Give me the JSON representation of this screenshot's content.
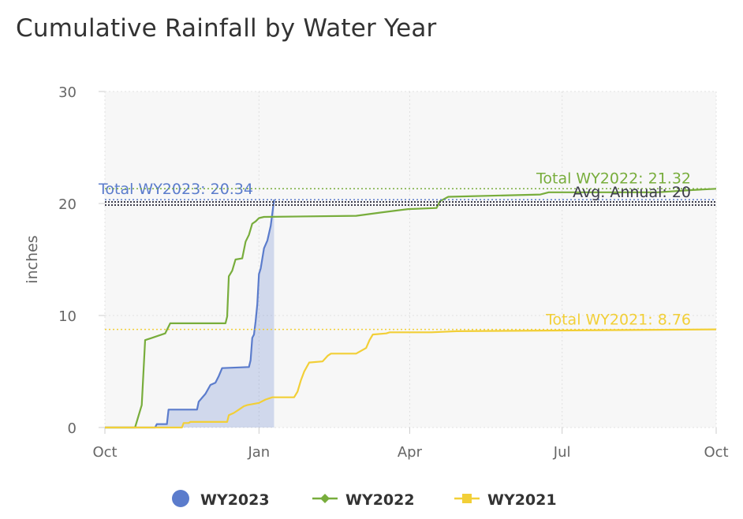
{
  "title": "Cumulative Rainfall by Water Year",
  "chart_data": {
    "type": "line",
    "title": "Cumulative Rainfall by Water Year",
    "ylabel": "inches",
    "xlabel": "",
    "ylim": [
      0,
      30
    ],
    "yticks": [
      0,
      10,
      20,
      30
    ],
    "xlim": [
      0,
      365
    ],
    "xticks": [
      {
        "day": 0,
        "label": "Oct"
      },
      {
        "day": 92,
        "label": "Jan"
      },
      {
        "day": 182,
        "label": "Apr"
      },
      {
        "day": 273,
        "label": "Jul"
      },
      {
        "day": 365,
        "label": "Oct"
      }
    ],
    "grid": true,
    "legend_position": "bottom",
    "colors": {
      "WY2023": "#5b7ccc",
      "WY2022": "#78ad3c",
      "WY2021": "#f2cf37",
      "avg": "#3c3c4b",
      "grid": "#e0e0e0",
      "plot_bg": "#f7f7f7"
    },
    "series": [
      {
        "name": "WY2023",
        "color": "#5b7ccc",
        "marker": "circle",
        "area": true,
        "points": [
          [
            0,
            0
          ],
          [
            30,
            0
          ],
          [
            31,
            0.3
          ],
          [
            37,
            0.3
          ],
          [
            38,
            1.6
          ],
          [
            55,
            1.6
          ],
          [
            56,
            2.3
          ],
          [
            60,
            3.0
          ],
          [
            63,
            3.8
          ],
          [
            66,
            4.0
          ],
          [
            68,
            4.6
          ],
          [
            70,
            5.3
          ],
          [
            86,
            5.4
          ],
          [
            87,
            6.0
          ],
          [
            88,
            8.0
          ],
          [
            89,
            8.3
          ],
          [
            90,
            9.5
          ],
          [
            91,
            11.0
          ],
          [
            92,
            13.7
          ],
          [
            93,
            14.2
          ],
          [
            95,
            16.0
          ],
          [
            97,
            16.7
          ],
          [
            99,
            18.0
          ],
          [
            101,
            20.34
          ]
        ],
        "label": "Total WY2023: 20.34",
        "total": 20.34
      },
      {
        "name": "WY2022",
        "color": "#78ad3c",
        "marker": "diamond",
        "points": [
          [
            0,
            0
          ],
          [
            18,
            0
          ],
          [
            22,
            2.0
          ],
          [
            24,
            7.8
          ],
          [
            28,
            8.0
          ],
          [
            32,
            8.2
          ],
          [
            36,
            8.4
          ],
          [
            39,
            9.3
          ],
          [
            72,
            9.3
          ],
          [
            73,
            9.9
          ],
          [
            74,
            13.5
          ],
          [
            76,
            14.0
          ],
          [
            78,
            15.0
          ],
          [
            82,
            15.1
          ],
          [
            84,
            16.6
          ],
          [
            86,
            17.2
          ],
          [
            88,
            18.2
          ],
          [
            90,
            18.4
          ],
          [
            92,
            18.7
          ],
          [
            95,
            18.8
          ],
          [
            150,
            18.9
          ],
          [
            165,
            19.2
          ],
          [
            181,
            19.5
          ],
          [
            198,
            19.6
          ],
          [
            200,
            20.2
          ],
          [
            205,
            20.6
          ],
          [
            260,
            20.8
          ],
          [
            265,
            21.0
          ],
          [
            295,
            21.0
          ],
          [
            330,
            21.0
          ],
          [
            350,
            21.2
          ],
          [
            365,
            21.32
          ]
        ],
        "label": "Total WY2022: 21.32",
        "total": 21.32
      },
      {
        "name": "WY2021",
        "color": "#f2cf37",
        "marker": "square",
        "points": [
          [
            0,
            0
          ],
          [
            46,
            0
          ],
          [
            47,
            0.4
          ],
          [
            50,
            0.4
          ],
          [
            51,
            0.5
          ],
          [
            73,
            0.5
          ],
          [
            74,
            1.1
          ],
          [
            77,
            1.3
          ],
          [
            80,
            1.6
          ],
          [
            83,
            1.9
          ],
          [
            85,
            2.0
          ],
          [
            92,
            2.2
          ],
          [
            96,
            2.5
          ],
          [
            100,
            2.7
          ],
          [
            113,
            2.7
          ],
          [
            115,
            3.2
          ],
          [
            117,
            4.2
          ],
          [
            119,
            5.0
          ],
          [
            122,
            5.8
          ],
          [
            130,
            5.9
          ],
          [
            133,
            6.4
          ],
          [
            135,
            6.6
          ],
          [
            150,
            6.6
          ],
          [
            156,
            7.1
          ],
          [
            158,
            7.8
          ],
          [
            160,
            8.3
          ],
          [
            168,
            8.4
          ],
          [
            170,
            8.5
          ],
          [
            195,
            8.5
          ],
          [
            210,
            8.6
          ],
          [
            365,
            8.76
          ]
        ],
        "label": "Total WY2021: 8.76",
        "total": 8.76
      }
    ],
    "reference_line": {
      "label": "Avg. Annual: 20",
      "value": 20
    }
  }
}
